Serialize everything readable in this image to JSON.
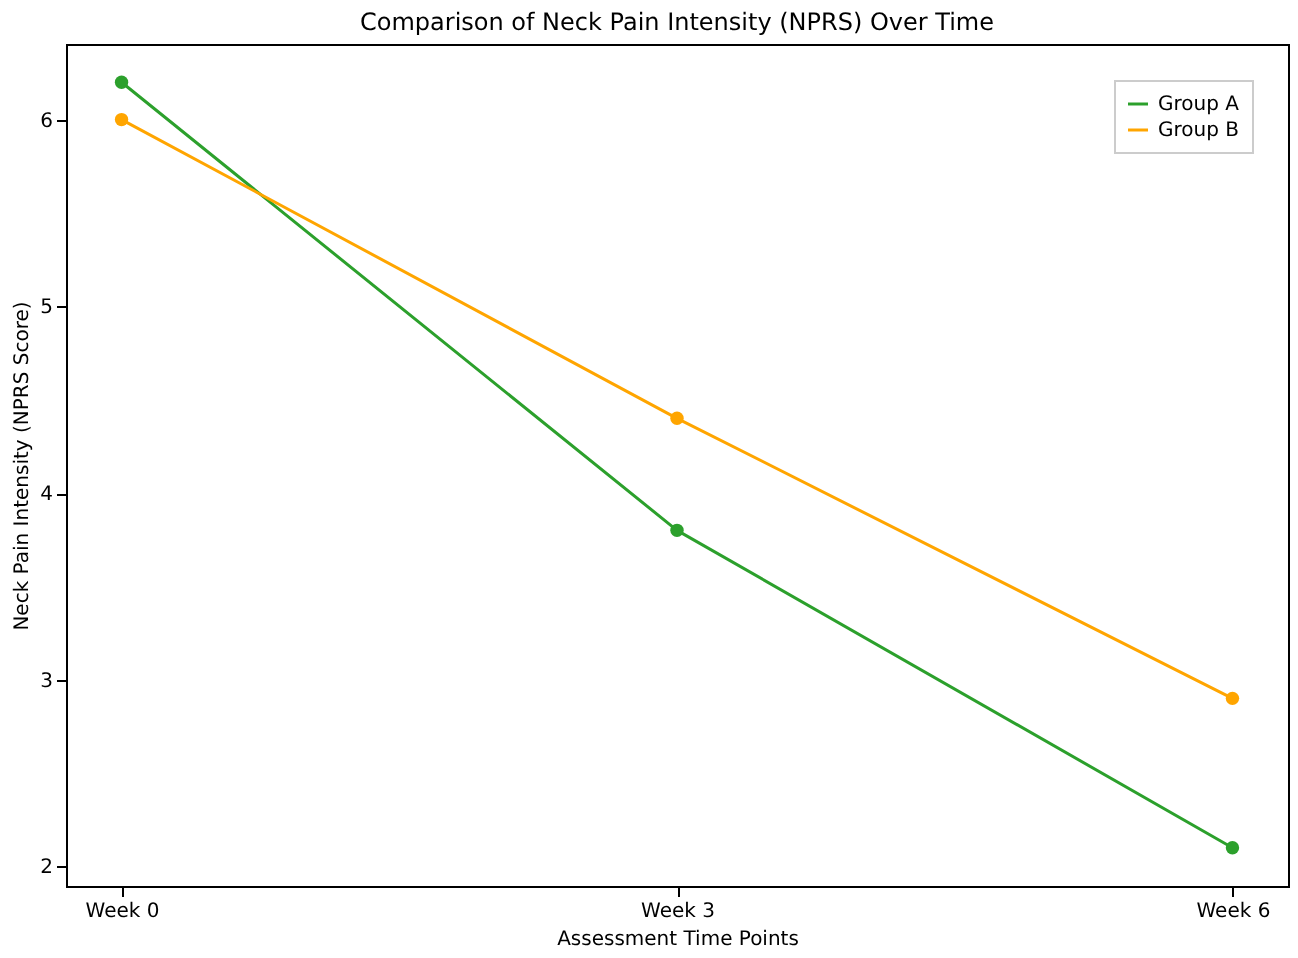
{
  "chart_data": {
    "type": "line",
    "title": "Comparison of Neck Pain Intensity (NPRS) Over Time",
    "xlabel": "Assessment Time Points",
    "ylabel": "Neck Pain Intensity (NPRS Score)",
    "categories": [
      "Week 0",
      "Week 3",
      "Week 6"
    ],
    "series": [
      {
        "name": "Group A",
        "color": "#2ca02c",
        "values": [
          6.2,
          3.8,
          2.1
        ]
      },
      {
        "name": "Group B",
        "color": "#ffa500",
        "values": [
          6.0,
          4.4,
          2.9
        ]
      }
    ],
    "ylim": [
      1.895,
      6.405
    ],
    "yticks": [
      2,
      3,
      4,
      5,
      6
    ],
    "grid": false,
    "legend": "top right",
    "marker": "circle",
    "line_style": "solid"
  }
}
